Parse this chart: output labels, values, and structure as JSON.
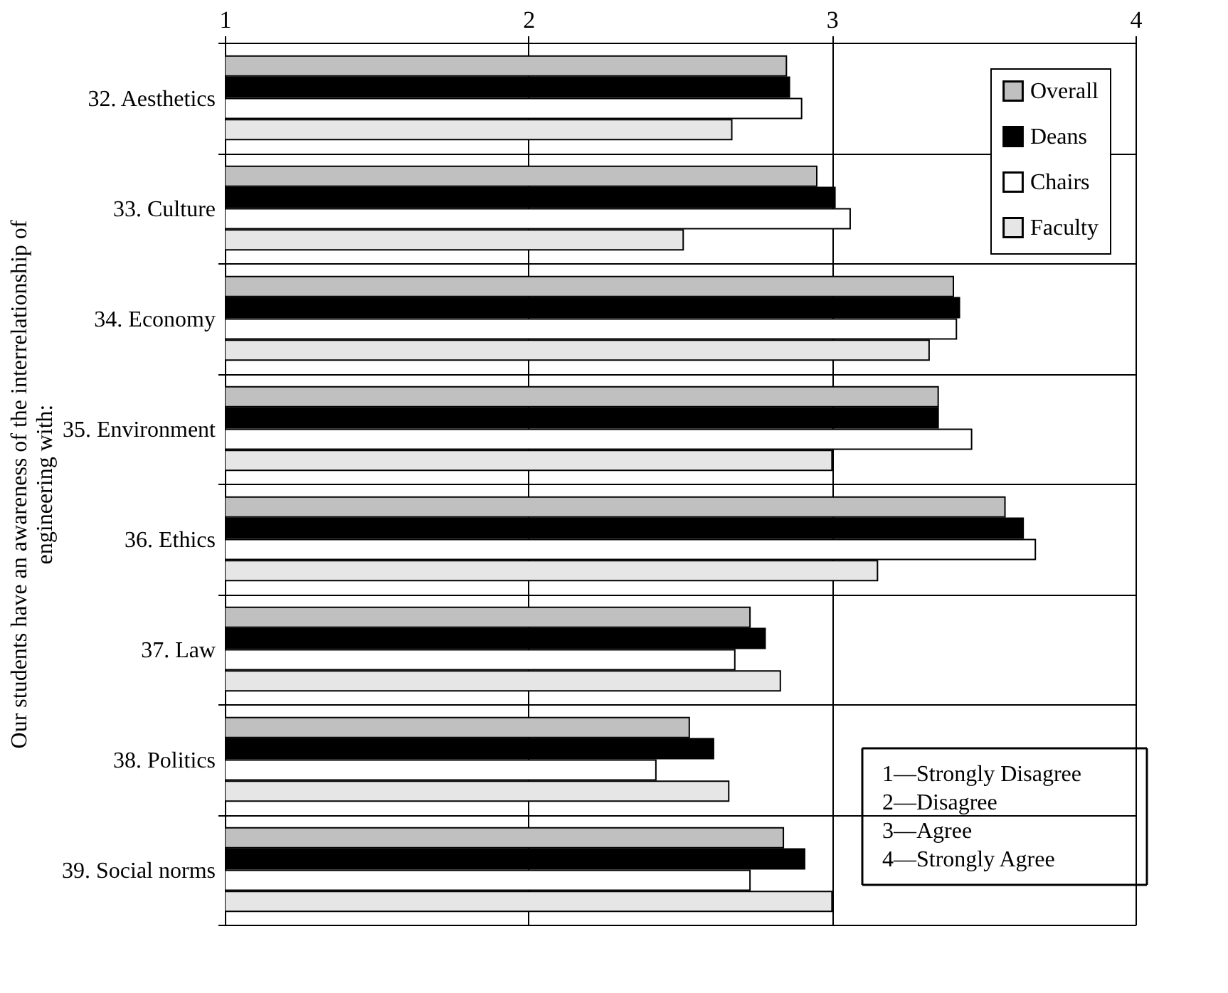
{
  "chart_data": {
    "type": "bar",
    "orientation": "horizontal",
    "ylabel": "Our students have an awareness of the interrelationship of engineering with:",
    "categories": [
      "32. Aesthetics",
      "33. Culture",
      "34. Economy",
      "35. Environment",
      "36. Ethics",
      "37. Law",
      "38. Politics",
      "39. Social norms"
    ],
    "series": [
      {
        "name": "Overall",
        "color": "#c0c0c0",
        "values": [
          2.85,
          2.95,
          3.4,
          3.35,
          3.57,
          2.73,
          2.53,
          2.84
        ]
      },
      {
        "name": "Deans",
        "color": "#000000",
        "values": [
          2.86,
          3.01,
          3.42,
          3.35,
          3.63,
          2.78,
          2.61,
          2.91
        ]
      },
      {
        "name": "Chairs",
        "color": "#ffffff",
        "values": [
          2.9,
          3.06,
          3.41,
          3.46,
          3.67,
          2.68,
          2.42,
          2.73
        ]
      },
      {
        "name": "Faculty",
        "color": "#e6e6e6",
        "values": [
          2.67,
          2.51,
          3.32,
          3.0,
          3.15,
          2.83,
          2.66,
          3.0
        ]
      }
    ],
    "xlim": [
      1,
      4
    ],
    "xticks": [
      1,
      2,
      3,
      4
    ],
    "grid": "x",
    "legend": "top right",
    "annotations": [
      "1—Strongly Disagree",
      "2—Disagree",
      "3—Agree",
      "4—Strongly Agree"
    ]
  }
}
